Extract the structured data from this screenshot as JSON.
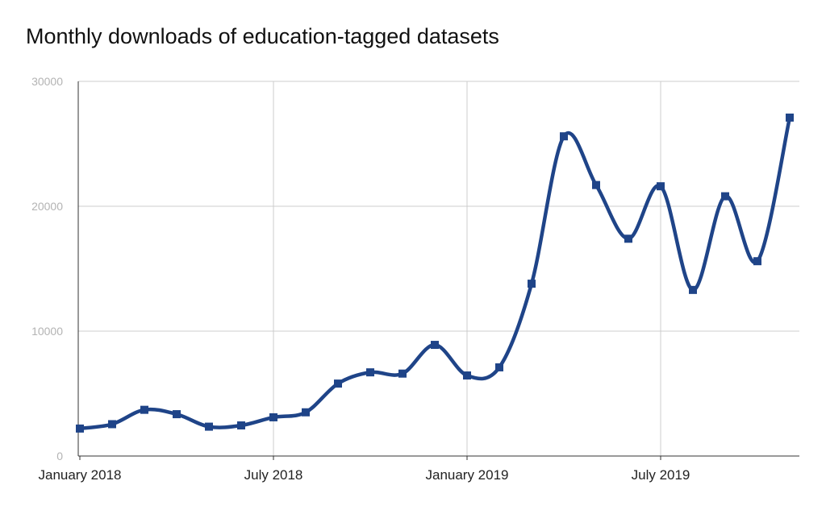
{
  "chart_data": {
    "type": "line",
    "title": "Monthly downloads of education-tagged datasets",
    "xlabel": "",
    "ylabel": "",
    "x_tick_labels": [
      "January 2018",
      "July 2018",
      "January 2019",
      "July 2019"
    ],
    "y_tick_labels": [
      "0",
      "10000",
      "20000",
      "30000"
    ],
    "ylim": [
      0,
      30000
    ],
    "grid": true,
    "smooth": true,
    "series": [
      {
        "x": [
          "2018-01",
          "2018-02",
          "2018-03",
          "2018-04",
          "2018-05",
          "2018-06",
          "2018-07",
          "2018-08",
          "2018-09",
          "2018-10",
          "2018-11",
          "2018-12",
          "2019-01",
          "2019-02",
          "2019-03",
          "2019-04",
          "2019-05",
          "2019-06",
          "2019-07",
          "2019-08",
          "2019-09",
          "2019-10",
          "2019-11"
        ],
        "values": [
          2200,
          2550,
          3700,
          3350,
          2350,
          2450,
          3100,
          3500,
          5800,
          6700,
          6600,
          8900,
          6450,
          7100,
          13800,
          25600,
          21700,
          17400,
          21600,
          13300,
          20800,
          15600,
          27100
        ],
        "color": "#1f4488",
        "marker": "square"
      }
    ]
  }
}
